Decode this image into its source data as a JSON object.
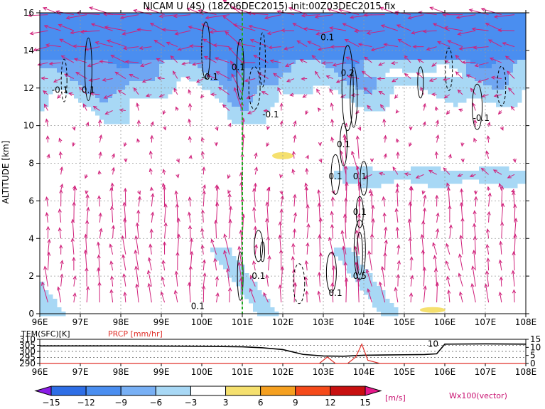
{
  "chart_data": [
    {
      "type": "heatmap",
      "title": "NICAM U (4S) (18Z06DEC2015) init:00Z03DEC2015 fix",
      "xlabel": "",
      "ylabel": "ALTITUDE [km]",
      "x_ticks": [
        "96E",
        "97E",
        "98E",
        "99E",
        "100E",
        "101E",
        "102E",
        "103E",
        "104E",
        "105E",
        "106E",
        "107E",
        "108E"
      ],
      "y_ticks": [
        "0",
        "2",
        "4",
        "6",
        "8",
        "10",
        "12",
        "14",
        "16"
      ],
      "xlim": [
        96,
        108
      ],
      "ylim": [
        0,
        16
      ],
      "grid": true,
      "marker_lon": 101,
      "contour_labels": [
        {
          "text": "-0.1",
          "lon": 96.5,
          "alt": 11.9
        },
        {
          "text": "0.1",
          "lon": 97.2,
          "alt": 11.9
        },
        {
          "text": "-0.1",
          "lon": 100.2,
          "alt": 12.6
        },
        {
          "text": "0.1",
          "lon": 100.9,
          "alt": 13.1
        },
        {
          "text": "-0.1",
          "lon": 101.7,
          "alt": 10.6
        },
        {
          "text": "0.1",
          "lon": 103.1,
          "alt": 14.7
        },
        {
          "text": "0.2",
          "lon": 103.6,
          "alt": 12.8
        },
        {
          "text": "-0.1",
          "lon": 106.9,
          "alt": 10.4
        },
        {
          "text": "0.1",
          "lon": 103.5,
          "alt": 9.0
        },
        {
          "text": "0.1",
          "lon": 103.3,
          "alt": 7.3
        },
        {
          "text": "0.1",
          "lon": 103.9,
          "alt": 7.3
        },
        {
          "text": "0.1",
          "lon": 103.9,
          "alt": 5.4
        },
        {
          "text": "0.1",
          "lon": 101.4,
          "alt": 2.0
        },
        {
          "text": "0.1",
          "lon": 103.3,
          "alt": 1.1
        },
        {
          "text": "0.1",
          "lon": 99.9,
          "alt": 0.4
        },
        {
          "text": "0.5",
          "lon": 103.9,
          "alt": 2.0
        }
      ],
      "vector_label": "Wx100(vector)",
      "colorbar": {
        "unit": "[m/s]",
        "labels": [
          "-15",
          "-12",
          "-9",
          "-6",
          "-3",
          "3",
          "6",
          "9",
          "12",
          "15"
        ],
        "colors": [
          "#8a1ce6",
          "#2e6ee6",
          "#4a8ef0",
          "#78b0f5",
          "#a8d8f5",
          "#ffffff",
          "#f5e06e",
          "#f5a020",
          "#f54a1a",
          "#c81010",
          "#e6198a"
        ]
      }
    },
    {
      "type": "line",
      "series": [
        {
          "name": "TEM(SFC)[K]",
          "x": [
            96,
            98,
            100,
            101,
            101.5,
            102,
            102.5,
            103,
            103.5,
            104,
            104.5,
            105,
            105.5,
            105.8,
            106,
            107,
            108
          ],
          "values": [
            304.5,
            304.5,
            304.2,
            303.8,
            303.0,
            301.5,
            297.5,
            296.2,
            296.0,
            296.8,
            297.0,
            297.2,
            297.4,
            298.0,
            306.0,
            306.2,
            306.0
          ]
        },
        {
          "name": "PRCP [mm/hr]",
          "x": [
            96,
            102.5,
            102.9,
            103.1,
            103.3,
            103.6,
            103.8,
            103.95,
            104.1,
            104.4,
            108
          ],
          "values": [
            0,
            0,
            0,
            4,
            0,
            0,
            4,
            12,
            2,
            0,
            0
          ]
        }
      ],
      "xlim": [
        96,
        108
      ],
      "left_axis": {
        "ylim": [
          290,
          310
        ],
        "ticks": [
          "290",
          "295",
          "300",
          "305",
          "310"
        ]
      },
      "right_axis": {
        "ylim": [
          0,
          15
        ],
        "ticks": [
          "0",
          "5",
          "10",
          "15"
        ]
      },
      "x_ticks": [
        "96E",
        "97E",
        "98E",
        "99E",
        "100E",
        "101E",
        "102E",
        "103E",
        "104E",
        "105E",
        "106E",
        "107E",
        "108E"
      ],
      "curve_label": "10"
    }
  ],
  "colors": {
    "marker": "#22aa22",
    "vector": "#d0207a",
    "prcp": "#e0302a",
    "grid": "#999999"
  }
}
